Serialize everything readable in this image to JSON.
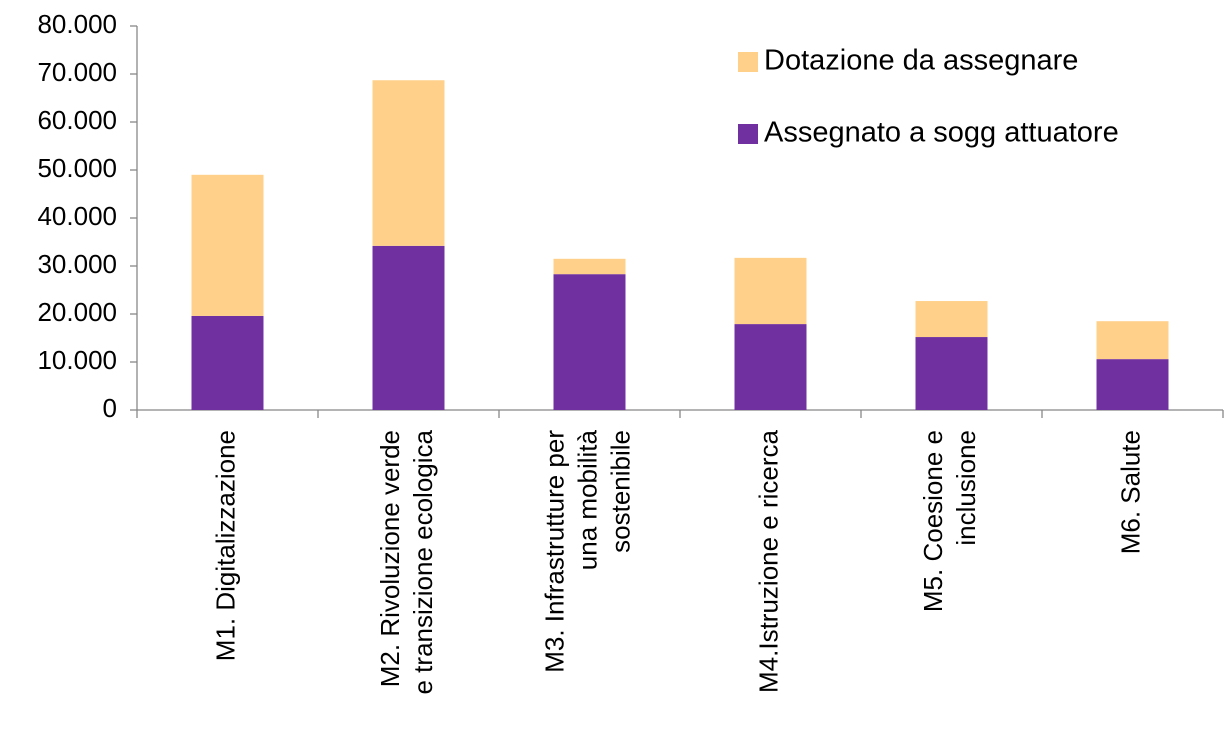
{
  "chart_data": {
    "type": "stacked_bar",
    "categories": [
      [
        "M1. Digitalizzazione"
      ],
      [
        "M2. Rivoluzione verde",
        "e transizione  ecologica"
      ],
      [
        "M3. Infrastrutture per",
        "una mobilità",
        "sostenibile"
      ],
      [
        "M4.Istruzione e ricerca"
      ],
      [
        "M5. Coesione e",
        "inclusione"
      ],
      [
        "M6. Salute"
      ]
    ],
    "series": [
      {
        "name": "Assegnato a sogg attuatore",
        "color": "#7030a0",
        "values": [
          19600,
          34200,
          28300,
          17900,
          15200,
          10600
        ]
      },
      {
        "name": "Dotazione da assegnare",
        "color": "#ffd08a",
        "values": [
          29400,
          34500,
          3200,
          13800,
          7500,
          7900
        ]
      }
    ],
    "ylim": [
      0,
      80000
    ],
    "yticks": [
      0,
      {
        "value": 10000,
        "label": "10.000"
      },
      {
        "value": 20000,
        "label": "20.000"
      },
      {
        "value": 30000,
        "label": "30.000"
      },
      {
        "value": 40000,
        "label": "40.000"
      },
      {
        "value": 50000,
        "label": "50.000"
      },
      {
        "value": 60000,
        "label": "60.000"
      },
      {
        "value": 70000,
        "label": "70.000"
      },
      {
        "value": 80000,
        "label": "80.000"
      }
    ],
    "legend": "top-right",
    "grid": false
  }
}
